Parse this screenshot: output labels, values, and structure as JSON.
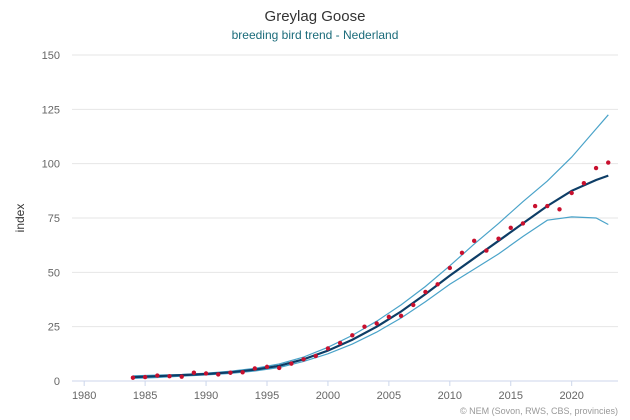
{
  "chart_data": {
    "type": "line",
    "title": "Greylag Goose",
    "subtitle": "breeding bird trend - Nederland",
    "xlabel": "",
    "ylabel": "index",
    "xlim": [
      1979,
      2023.8
    ],
    "ylim": [
      0,
      150
    ],
    "x_ticks": [
      1980,
      1985,
      1990,
      1995,
      2000,
      2005,
      2010,
      2015,
      2020
    ],
    "y_ticks": [
      0,
      25,
      50,
      75,
      100,
      125,
      150
    ],
    "grid": "horizontal",
    "legend": "none",
    "credits": "© NEM (Sovon, RWS, CBS, provincies)",
    "colors": {
      "trend": "#0d3d66",
      "confidence": "#4aa3c9",
      "points": "#c8102e",
      "grid": "#e6e6e6",
      "axis": "#ccd6eb",
      "tick_label": "#666666"
    },
    "series": [
      {
        "role": "points",
        "x": [
          1984,
          1985,
          1986,
          1987,
          1988,
          1989,
          1990,
          1991,
          1992,
          1993,
          1994,
          1995,
          1996,
          1997,
          1998,
          1999,
          2000,
          2001,
          2002,
          2003,
          2004,
          2005,
          2006,
          2007,
          2008,
          2009,
          2010,
          2011,
          2012,
          2013,
          2014,
          2015,
          2016,
          2017,
          2018,
          2019,
          2020,
          2021,
          2022,
          2023
        ],
        "values": [
          1.5,
          1.8,
          2.5,
          2.2,
          2.0,
          3.8,
          3.5,
          3.0,
          3.8,
          4.0,
          5.8,
          6.5,
          6.0,
          8.0,
          10.0,
          11.5,
          15.0,
          17.5,
          21.0,
          25.0,
          26.5,
          29.5,
          30.0,
          35.0,
          41.0,
          44.5,
          52.0,
          59.0,
          64.5,
          60.0,
          65.5,
          70.5,
          72.5,
          80.5,
          80.5,
          79.0,
          86.5,
          91.0,
          98.0,
          100.5
        ]
      },
      {
        "role": "trend",
        "x": [
          1984,
          1986,
          1988,
          1990,
          1992,
          1994,
          1996,
          1998,
          2000,
          2002,
          2004,
          2006,
          2008,
          2010,
          2012,
          2014,
          2016,
          2018,
          2020,
          2022,
          2023
        ],
        "values": [
          1.8,
          2.2,
          2.7,
          3.2,
          4.0,
          5.2,
          7.0,
          10.0,
          14.0,
          19.0,
          25.0,
          32.0,
          40.0,
          48.5,
          56.5,
          64.5,
          72.5,
          80.5,
          87.5,
          92.5,
          94.5
        ]
      },
      {
        "role": "upper",
        "x": [
          1984,
          1986,
          1988,
          1990,
          1992,
          1994,
          1996,
          1998,
          2000,
          2002,
          2004,
          2006,
          2008,
          2010,
          2012,
          2014,
          2016,
          2018,
          2020,
          2022,
          2023
        ],
        "values": [
          2.4,
          2.7,
          3.0,
          3.6,
          4.5,
          5.8,
          7.8,
          11.0,
          15.5,
          21.0,
          27.5,
          35.0,
          43.5,
          53.0,
          63.0,
          72.5,
          82.5,
          92.0,
          103.0,
          116.0,
          122.5
        ]
      },
      {
        "role": "lower",
        "x": [
          1984,
          1986,
          1988,
          1990,
          1992,
          1994,
          1996,
          1998,
          2000,
          2002,
          2004,
          2006,
          2008,
          2010,
          2012,
          2014,
          2016,
          2018,
          2020,
          2022,
          2023
        ],
        "values": [
          1.2,
          1.6,
          2.2,
          2.8,
          3.5,
          4.6,
          6.2,
          9.0,
          12.5,
          17.0,
          22.5,
          29.0,
          36.5,
          44.5,
          51.5,
          58.5,
          66.5,
          74.0,
          75.5,
          75.0,
          72.0
        ]
      }
    ]
  }
}
